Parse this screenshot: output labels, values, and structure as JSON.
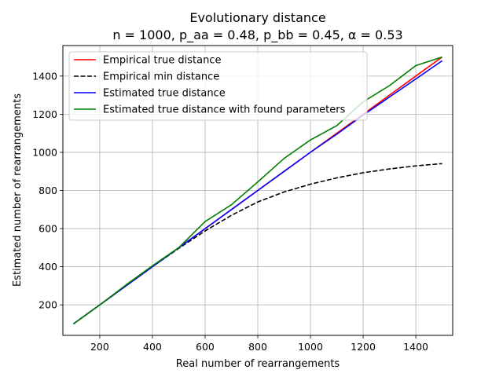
{
  "chart_data": {
    "type": "line",
    "title": "Evolutionary distance",
    "subtitle": "n = 1000, p_aa = 0.48, p_bb = 0.45, α = 0.53",
    "xlabel": "Real number of rearrangements",
    "ylabel": "Estimated number of rearrangements",
    "xlim": [
      60,
      1540
    ],
    "ylim": [
      40,
      1560
    ],
    "xticks": [
      200,
      400,
      600,
      800,
      1000,
      1200,
      1400
    ],
    "yticks": [
      200,
      400,
      600,
      800,
      1000,
      1200,
      1400
    ],
    "grid": true,
    "legend_position": "top-left",
    "x": [
      100,
      200,
      300,
      400,
      500,
      600,
      700,
      800,
      900,
      1000,
      1100,
      1200,
      1300,
      1400,
      1500
    ],
    "series": [
      {
        "name": "Empirical true distance",
        "color": "#ff0000",
        "dash": "solid",
        "values": [
          100,
          200,
          300,
          400,
          500,
          600,
          700,
          800,
          900,
          1000,
          1100,
          1200,
          1300,
          1400,
          1500
        ]
      },
      {
        "name": "Empirical min distance",
        "color": "#000000",
        "dash": "dashed",
        "values": [
          100,
          200,
          300,
          400,
          497,
          588,
          670,
          740,
          792,
          833,
          866,
          893,
          913,
          929,
          941
        ]
      },
      {
        "name": "Estimated true distance",
        "color": "#0000ff",
        "dash": "solid",
        "values": [
          100,
          200,
          300,
          400,
          500,
          600,
          700,
          800,
          900,
          1000,
          1095,
          1195,
          1290,
          1385,
          1480
        ]
      },
      {
        "name": "Estimated true distance with found parameters",
        "color": "#008000",
        "dash": "solid",
        "values": [
          100,
          200,
          305,
          405,
          500,
          637,
          725,
          845,
          968,
          1065,
          1140,
          1265,
          1350,
          1455,
          1500
        ]
      }
    ]
  }
}
